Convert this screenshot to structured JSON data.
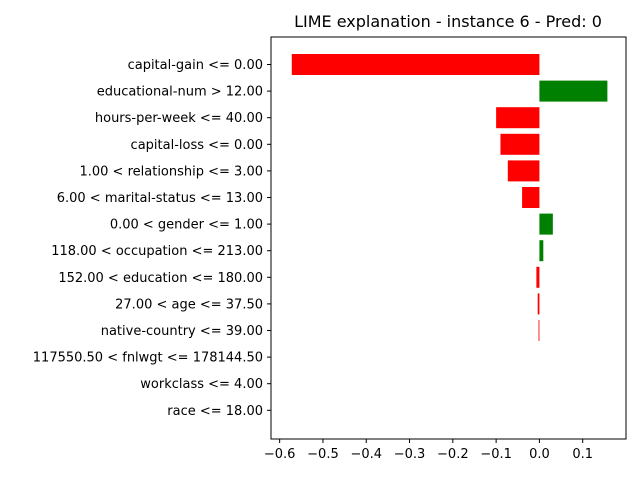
{
  "chart_data": {
    "type": "bar",
    "orientation": "horizontal",
    "title": "LIME explanation - instance 6 - Pred: 0",
    "xlabel": "",
    "ylabel": "",
    "xlim": [
      -0.62,
      0.2
    ],
    "xticks": [
      -0.6,
      -0.5,
      -0.4,
      -0.3,
      -0.2,
      -0.1,
      0.0,
      0.1
    ],
    "xtick_labels": [
      "−0.6",
      "−0.5",
      "−0.4",
      "−0.3",
      "−0.2",
      "−0.1",
      "0.0",
      "0.1"
    ],
    "grid": false,
    "colors": {
      "positive": "#008000",
      "negative": "#ff0000"
    },
    "categories": [
      "capital-gain <= 0.00",
      "educational-num > 12.00",
      "hours-per-week <= 40.00",
      "capital-loss <= 0.00",
      "1.00 < relationship <= 3.00",
      "6.00 < marital-status <= 13.00",
      "0.00 < gender <= 1.00",
      "118.00 < occupation <= 213.00",
      "152.00 < education <= 180.00",
      "27.00 < age <= 37.50",
      "native-country <= 39.00",
      "117550.50 < fnlwgt <= 178144.50",
      "workclass <= 4.00",
      "race <= 18.00"
    ],
    "values": [
      -0.572,
      0.157,
      -0.1,
      -0.09,
      -0.073,
      -0.04,
      0.031,
      0.009,
      -0.007,
      -0.004,
      -0.002,
      0.0,
      0.0,
      0.0
    ]
  }
}
